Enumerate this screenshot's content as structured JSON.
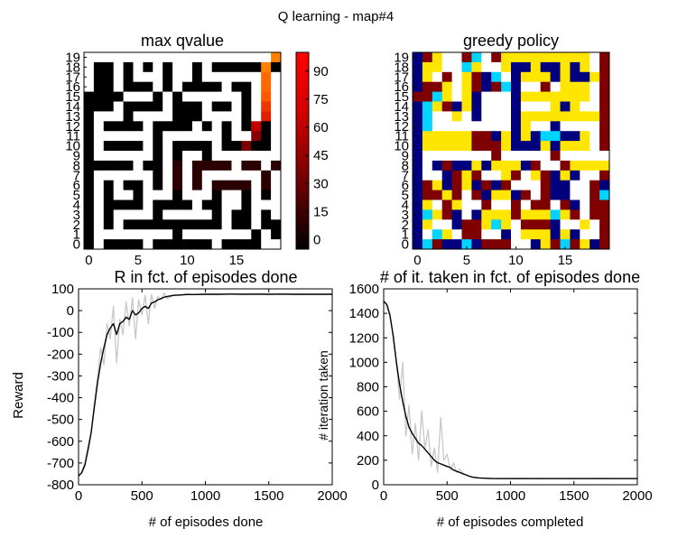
{
  "figure": {
    "suptitle": "Q learning - map#4"
  },
  "chart_data": [
    {
      "type": "heatmap",
      "title": "max qvalue",
      "size": 20,
      "xticks": [
        0,
        5,
        10,
        15
      ],
      "yticks": [
        "0",
        "1",
        "2",
        "3",
        "4",
        "5",
        "6",
        "7",
        "8",
        "9",
        "10",
        "11",
        "12",
        "13",
        "14",
        "15",
        "16",
        "17",
        "18",
        "19"
      ],
      "colormap": "hot",
      "colorbar": {
        "ticks": [
          90,
          75,
          60,
          45,
          30,
          15,
          0
        ],
        "range": [
          -5,
          100
        ]
      },
      "rows_top_to_bottom": [
        "....................",
        ".##.#.#.#..#.#######",
        ".##.#...#..#......#.",
        ".##.###.#.####.##.#.",
        "####...#.#......#.#.",
        "###.####.###.##.#.#.",
        "#...#....###....#.#.",
        "#.####.####.#.#.#.#.",
        "#......#......#...#.",
        "#.####.#.####.#####.",
        "#......#.#..#.......",
        "#####.##.#.####.##.#",
        "#......#.#.#......#.",
        "#.#.##.#.#.#.####.#.",
        "#.#..#...#...#..#.#.",
        "#.####.####.##..#...",
        "#.#....#.....#.##.#.",
        "#.#.##########.##.##",
        "#........#.......#.#",
        "#.####.######.####.."
      ],
      "value_overrides": [
        {
          "row": 0,
          "col": 19,
          "value": 100
        },
        {
          "row": 1,
          "col": 18,
          "value": 100
        },
        {
          "row": 2,
          "col": 18,
          "value": 95
        },
        {
          "row": 3,
          "col": 18,
          "value": 95
        },
        {
          "row": 4,
          "col": 18,
          "value": 92
        },
        {
          "row": 5,
          "col": 18,
          "value": 85
        },
        {
          "row": 6,
          "col": 18,
          "value": 80
        },
        {
          "row": 7,
          "col": 17,
          "value": 70
        },
        {
          "row": 8,
          "col": 17,
          "value": 45
        },
        {
          "row": 9,
          "col": 16,
          "value": 40
        }
      ]
    },
    {
      "type": "heatmap",
      "title": "greedy policy",
      "size": 20,
      "xticks": [
        0,
        5,
        10,
        15
      ],
      "yticks": [
        "0",
        "1",
        "2",
        "3",
        "4",
        "5",
        "6",
        "7",
        "8",
        "9",
        "10",
        "11",
        "12",
        "13",
        "14",
        "15",
        "16",
        "17",
        "18",
        "19"
      ],
      "palette": {
        "N": "#00007f",
        "C": "#00d4ff",
        "Y": "#ffe600",
        "R": "#7f0000",
        ".": "#ffffff"
      },
      "rows_top_to_bottom": [
        "NRY..RC.RYYYYYYYYY.R",
        "NYY..CY..YNNYNNYNY.R",
        "NY.R.YRNC.NYYYNYNNYR",
        "NRRY.YRNRCN..R.YYY.R",
        "RRCY.YN...NYYYYYYY.R",
        "NCYRNYN...N...YNY..R",
        "NC..Y.N...NYYYYYYYYR",
        "NC........NY..N....R",
        "NYYYYYRRNYNYNCCNNY.R",
        "NYYYYYRRRYNNNYNYYY.R",
        "N.......R.....R.....",
        "N.NRNNYNYYYNR..RYYYY",
        "N..NRYR..YR.YRNYN..R",
        "NRYNRYNRNR...RNN..RN",
        "NRRYR.RNYYNR.RNN..RC",
        "NY.RY..R..R.RR.RN.RR",
        "NCYRN.NYYYRYYYCYR.RR",
        "NY..NRRYCY.RRRN..Y.R",
        "N.CY.RR..N.YYYNYN..R",
        "NCRNNCNRRR..NYRCRYNR"
      ]
    },
    {
      "type": "line",
      "title": "R in fct. of episodes done",
      "xlabel": "# of episodes done",
      "ylabel": "Reward",
      "xlim": [
        0,
        2000
      ],
      "ylim": [
        -800,
        100
      ],
      "xticks": [
        0,
        500,
        1000,
        1500,
        2000
      ],
      "yticks": [
        100,
        0,
        -100,
        -200,
        -300,
        -400,
        -500,
        -600,
        -700,
        -800
      ],
      "series": [
        {
          "style": "raw",
          "color": "#c8c8c8",
          "x": [
            0,
            25,
            50,
            75,
            100,
            125,
            150,
            175,
            200,
            225,
            250,
            275,
            300,
            325,
            350,
            375,
            400,
            425,
            450,
            475,
            500,
            525,
            550,
            575,
            600,
            625,
            650,
            675,
            700,
            750,
            800,
            850,
            900,
            1000,
            1100,
            1200,
            1300,
            1400,
            1500,
            1600,
            1700,
            1800,
            1900,
            2000
          ],
          "y": [
            -760,
            -740,
            -700,
            -620,
            -560,
            -420,
            -300,
            -170,
            -250,
            -60,
            -130,
            20,
            -240,
            -40,
            -110,
            40,
            -70,
            60,
            -130,
            50,
            -20,
            70,
            -60,
            75,
            10,
            65,
            50,
            80,
            55,
            72,
            70,
            78,
            74,
            76,
            74,
            77,
            75,
            76,
            75,
            77,
            74,
            76,
            75,
            76
          ]
        },
        {
          "style": "smoothed",
          "color": "#000000",
          "x": [
            0,
            25,
            50,
            75,
            100,
            125,
            150,
            175,
            200,
            225,
            250,
            275,
            300,
            325,
            350,
            375,
            400,
            425,
            450,
            475,
            500,
            525,
            550,
            575,
            600,
            625,
            650,
            675,
            700,
            750,
            800,
            850,
            900,
            1000,
            1100,
            1200,
            1300,
            1400,
            1500,
            1600,
            1700,
            1800,
            1900,
            2000
          ],
          "y": [
            -760,
            -745,
            -710,
            -640,
            -560,
            -440,
            -330,
            -240,
            -170,
            -110,
            -80,
            -60,
            -110,
            -60,
            -50,
            -30,
            -40,
            0,
            -20,
            -10,
            10,
            20,
            10,
            35,
            40,
            50,
            55,
            62,
            65,
            70,
            72,
            74,
            74,
            75,
            75,
            76,
            75,
            76,
            75,
            76,
            75,
            75,
            75,
            75
          ]
        }
      ]
    },
    {
      "type": "line",
      "title": "# of it. taken in fct. of episodes done",
      "xlabel": "# of episodes completed",
      "ylabel": "# iteration taken",
      "xlim": [
        0,
        2000
      ],
      "ylim": [
        0,
        1600
      ],
      "xticks": [
        0,
        500,
        1000,
        1500,
        2000
      ],
      "yticks": [
        1600,
        1400,
        1200,
        1000,
        800,
        600,
        400,
        200,
        0
      ],
      "series": [
        {
          "style": "raw",
          "color": "#c8c8c8",
          "x": [
            0,
            25,
            50,
            75,
            100,
            125,
            150,
            175,
            200,
            225,
            250,
            275,
            300,
            325,
            350,
            375,
            400,
            425,
            450,
            475,
            500,
            525,
            550,
            575,
            600,
            625,
            650,
            675,
            700,
            750,
            800,
            850,
            900,
            1000,
            1100,
            1200,
            1300,
            1400,
            1500,
            1600,
            1700,
            1800,
            1900,
            2000
          ],
          "y": [
            1500,
            1480,
            1400,
            1200,
            1000,
            700,
            1000,
            400,
            650,
            250,
            500,
            200,
            600,
            300,
            450,
            150,
            300,
            100,
            550,
            200,
            250,
            120,
            180,
            100,
            130,
            90,
            80,
            70,
            60,
            55,
            52,
            50,
            50,
            50,
            52,
            48,
            50,
            51,
            49,
            50,
            52,
            50,
            49,
            50
          ]
        },
        {
          "style": "smoothed",
          "color": "#000000",
          "x": [
            0,
            25,
            50,
            75,
            100,
            125,
            150,
            175,
            200,
            225,
            250,
            275,
            300,
            325,
            350,
            375,
            400,
            425,
            450,
            475,
            500,
            525,
            550,
            575,
            600,
            625,
            650,
            675,
            700,
            750,
            800,
            850,
            900,
            1000,
            1100,
            1200,
            1300,
            1400,
            1500,
            1600,
            1700,
            1800,
            1900,
            2000
          ],
          "y": [
            1500,
            1470,
            1380,
            1220,
            1000,
            820,
            680,
            560,
            470,
            420,
            380,
            340,
            320,
            290,
            260,
            230,
            200,
            180,
            170,
            160,
            150,
            140,
            120,
            110,
            100,
            90,
            80,
            70,
            62,
            56,
            53,
            51,
            50,
            50,
            50,
            50,
            50,
            50,
            50,
            50,
            50,
            50,
            50,
            50
          ]
        }
      ]
    }
  ]
}
